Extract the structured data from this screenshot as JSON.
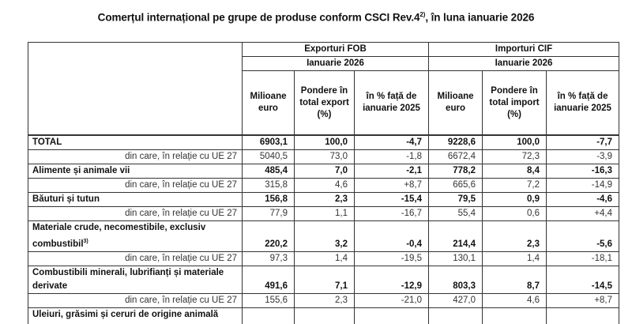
{
  "title": {
    "main": "Comerțul internațional pe grupe de produse conform CSCI Rev.4",
    "superscript": "2)",
    "suffix": ", în luna ianuarie 2026"
  },
  "table": {
    "groups": [
      {
        "label": "Exporturi FOB",
        "period": "Ianuarie 2026"
      },
      {
        "label": "Importuri CIF",
        "period": "Ianuarie 2026"
      }
    ],
    "columns": {
      "export": [
        "Milioane euro",
        "Pondere în total export (%)",
        "în % față de ianuarie 2025"
      ],
      "import": [
        "Milioane euro",
        "Pondere în total import (%)",
        "în % față de ianuarie 2025"
      ]
    },
    "rows": [
      {
        "label": "TOTAL",
        "type": "bold",
        "values": [
          "6903,1",
          "100,0",
          "-4,7",
          "9228,6",
          "100,0",
          "-7,7"
        ]
      },
      {
        "label": "din care, în relație cu UE 27",
        "type": "sub",
        "values": [
          "5040,5",
          "73,0",
          "-1,8",
          "6672,4",
          "72,3",
          "-3,9"
        ]
      },
      {
        "label": "Alimente și animale vii",
        "type": "bold",
        "values": [
          "485,4",
          "7,0",
          "-2,1",
          "778,2",
          "8,4",
          "-16,3"
        ]
      },
      {
        "label": "din care, în relație cu UE 27",
        "type": "sub",
        "values": [
          "315,8",
          "4,6",
          "+8,7",
          "665,6",
          "7,2",
          "-14,9"
        ]
      },
      {
        "label": "Băuturi și tutun",
        "type": "bold",
        "values": [
          "156,8",
          "2,3",
          "-15,4",
          "79,5",
          "0,9",
          "-4,6"
        ]
      },
      {
        "label": "din care, în relație cu UE 27",
        "type": "sub",
        "values": [
          "77,9",
          "1,1",
          "-16,7",
          "55,4",
          "0,6",
          "+4,4"
        ]
      },
      {
        "label": "Materiale crude, necomestibile, exclusiv combustibil",
        "label_sup": "3)",
        "type": "bold-tall",
        "values": [
          "220,2",
          "3,2",
          "-0,4",
          "214,4",
          "2,3",
          "-5,6"
        ]
      },
      {
        "label": "din care, în relație cu UE 27",
        "type": "sub",
        "values": [
          "97,3",
          "1,4",
          "-19,5",
          "130,1",
          "1,4",
          "-18,1"
        ]
      },
      {
        "label": "Combustibili minerali, lubrifianți și materiale derivate",
        "type": "bold-tall",
        "values": [
          "491,6",
          "7,1",
          "-12,9",
          "803,3",
          "8,7",
          "-14,5"
        ]
      },
      {
        "label": "din care, în relație cu UE 27",
        "type": "sub",
        "values": [
          "155,6",
          "2,3",
          "-21,0",
          "427,0",
          "4,6",
          "+8,7"
        ]
      },
      {
        "label": "Uleiuri, grăsimi și ceruri de origine animală",
        "type": "bold-partial",
        "values": [
          "",
          "",
          "",
          "",
          "",
          ""
        ]
      }
    ]
  }
}
